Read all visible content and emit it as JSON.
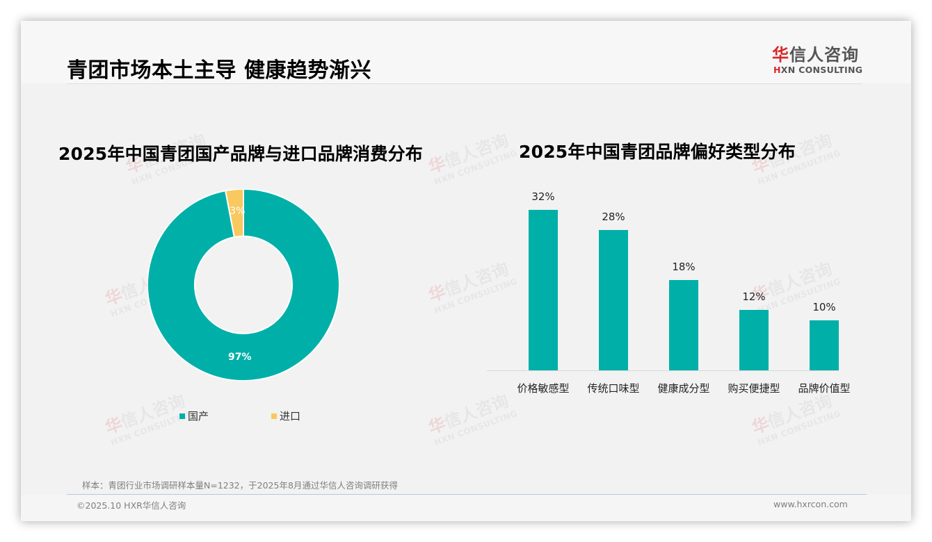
{
  "header": {
    "title": "青团市场本土主导 健康趋势渐兴",
    "logo_cn_red": "华",
    "logo_cn_rest": "信人咨询",
    "logo_en_red": "H",
    "logo_en_rest": "XN CONSULTING"
  },
  "watermark": {
    "cn_red": "华",
    "cn_rest": "信人咨询",
    "en": "HXN CONSULTING"
  },
  "colors": {
    "teal": "#00b0a8",
    "yellow": "#f9c85e",
    "brand_red": "#d9262a"
  },
  "chart_data": [
    {
      "type": "pie",
      "variant": "donut",
      "title": "2025年中国青团国产品牌与进口品牌消费分布",
      "categories": [
        "国产",
        "进口"
      ],
      "values": [
        97,
        3
      ],
      "labels": [
        "97%",
        "3%"
      ],
      "colors": [
        "#00b0a8",
        "#f9c85e"
      ],
      "legend_position": "bottom"
    },
    {
      "type": "bar",
      "title": "2025年中国青团品牌偏好类型分布",
      "categories": [
        "价格敏感型",
        "传统口味型",
        "健康成分型",
        "购买便捷型",
        "品牌价值型"
      ],
      "values": [
        32,
        28,
        18,
        12,
        10
      ],
      "labels": [
        "32%",
        "28%",
        "18%",
        "12%",
        "10%"
      ],
      "unit": "%",
      "xlabel": "",
      "ylabel": "",
      "grid": false,
      "color": "#00b0a8"
    }
  ],
  "footer": {
    "note": "样本：青团行业市场调研样本量N=1232，于2025年8月通过华信人咨询调研获得",
    "copyright": "©2025.10 HXR华信人咨询",
    "site": "www.hxrcon.com"
  }
}
